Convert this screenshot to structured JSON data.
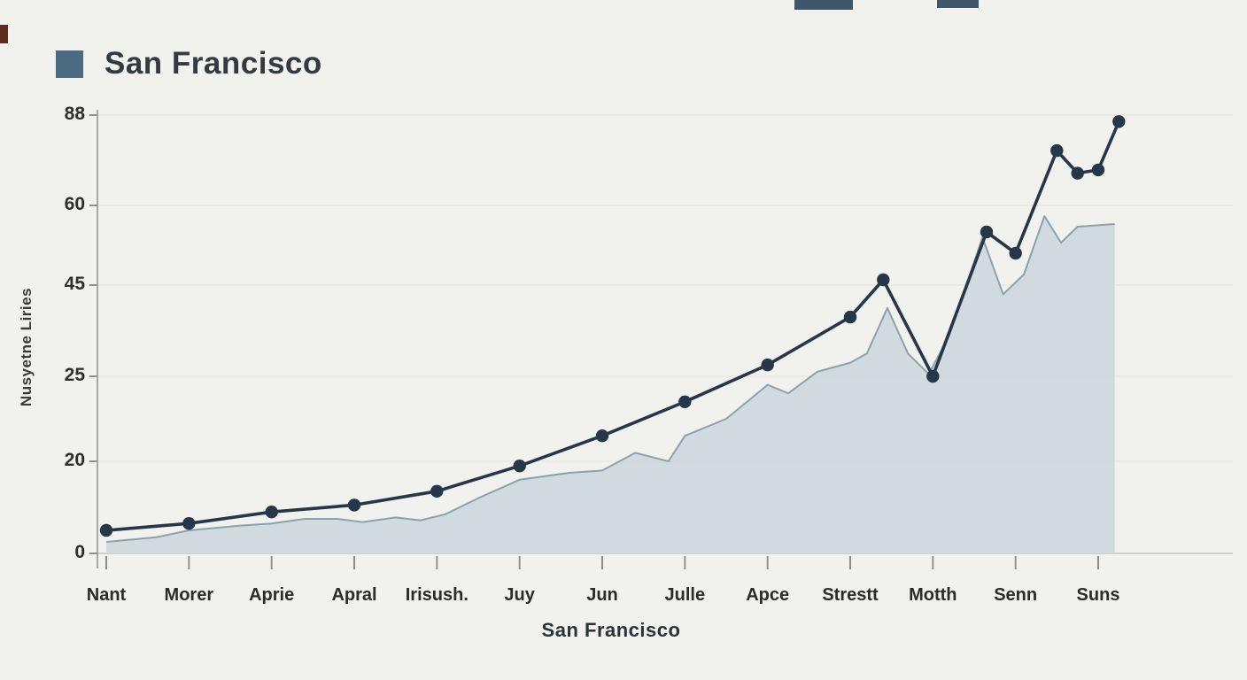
{
  "page": {
    "background": "#f1f1ee"
  },
  "chart_data": {
    "type": "line",
    "title": "San Francisco",
    "xlabel": "San Francisco",
    "ylabel": "Nusyetne Liries",
    "legend": {
      "label": "San Francisco",
      "color": "#4a6b81",
      "position": "top-left"
    },
    "grid": true,
    "categories": [
      "Nant",
      "Morer",
      "Aprie",
      "Apral",
      "Irisush.",
      "Juy",
      "Jun",
      "Julle",
      "Apce",
      "Strestt",
      "Motth",
      "Senn",
      "Suns"
    ],
    "y_ticks": [
      0,
      20,
      25,
      45,
      60,
      88
    ],
    "ylim": [
      0,
      88
    ],
    "series": [
      {
        "name": "line-series",
        "type": "line",
        "color": "#27374a",
        "markers": true,
        "points": [
          [
            0,
            5
          ],
          [
            1,
            6.5
          ],
          [
            2,
            9
          ],
          [
            3,
            10.5
          ],
          [
            4,
            13.5
          ],
          [
            5,
            19
          ],
          [
            6,
            21.5
          ],
          [
            7,
            23.5
          ],
          [
            8,
            27.5
          ],
          [
            9,
            38
          ],
          [
            9.4,
            46
          ],
          [
            10,
            25
          ],
          [
            10.65,
            55
          ],
          [
            11,
            51
          ],
          [
            11.5,
            77
          ],
          [
            11.75,
            70
          ],
          [
            12,
            71
          ],
          [
            12.25,
            86
          ]
        ]
      },
      {
        "name": "area-series",
        "type": "area",
        "color": "#cdd7dc",
        "edge_color": "#5e7f8e",
        "points": [
          [
            0,
            2.5
          ],
          [
            0.6,
            3.5
          ],
          [
            1,
            5
          ],
          [
            1.6,
            6
          ],
          [
            2,
            6.5
          ],
          [
            2.4,
            7.5
          ],
          [
            2.8,
            7.5
          ],
          [
            3.1,
            6.8
          ],
          [
            3.5,
            7.8
          ],
          [
            3.8,
            7.2
          ],
          [
            4.1,
            8.5
          ],
          [
            4.5,
            12
          ],
          [
            5,
            16
          ],
          [
            5.6,
            17.5
          ],
          [
            6,
            18
          ],
          [
            6.4,
            20.5
          ],
          [
            6.8,
            20
          ],
          [
            7,
            21.5
          ],
          [
            7.5,
            22.5
          ],
          [
            8,
            24.5
          ],
          [
            8.25,
            24
          ],
          [
            8.6,
            26
          ],
          [
            9,
            28
          ],
          [
            9.2,
            30
          ],
          [
            9.45,
            40
          ],
          [
            9.7,
            30
          ],
          [
            9.95,
            25.5
          ],
          [
            10.2,
            34
          ],
          [
            10.6,
            54
          ],
          [
            10.85,
            43
          ],
          [
            11.1,
            47
          ],
          [
            11.35,
            58
          ],
          [
            11.55,
            53
          ],
          [
            11.75,
            56
          ],
          [
            12.2,
            56.5
          ]
        ]
      }
    ]
  }
}
